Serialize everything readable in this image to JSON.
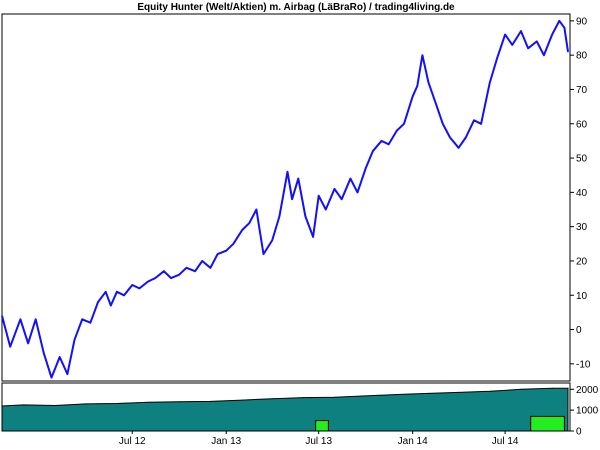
{
  "colors": {
    "background": "#ffffff",
    "frame": "#000000",
    "equity_line": "#1010ff",
    "volume_fill": "#0e8080",
    "volume_outline": "#000000",
    "airbag_fill": "#22ee22",
    "grid_tick": "#000000"
  },
  "chart_data": [
    {
      "type": "line",
      "title": "Equity Hunter (Welt/Aktien) m. Airbag (LäBraRo) / trading4living.de",
      "y_axis_side": "right",
      "ylim": [
        -15,
        92
      ],
      "yticks": [
        -10,
        0,
        10,
        20,
        30,
        40,
        50,
        60,
        70,
        80,
        90
      ],
      "ytick_labels": [
        "-10",
        "0",
        "10",
        "20",
        "30",
        "40",
        "50",
        "60",
        "70",
        "80",
        "90"
      ],
      "xlim": [
        "2011-10-20",
        "2014-11-05"
      ],
      "grid": false,
      "series": [
        {
          "values_x": [
            "2011-10-20",
            "2011-11-05",
            "2011-11-25",
            "2011-12-10",
            "2011-12-25",
            "2012-01-10",
            "2012-01-25",
            "2012-02-10",
            "2012-02-25",
            "2012-03-10",
            "2012-03-25",
            "2012-04-10",
            "2012-04-25",
            "2012-05-10",
            "2012-05-20",
            "2012-06-01",
            "2012-06-15",
            "2012-07-01",
            "2012-07-15",
            "2012-08-01",
            "2012-08-15",
            "2012-09-01",
            "2012-09-15",
            "2012-10-01",
            "2012-10-15",
            "2012-11-01",
            "2012-11-15",
            "2012-12-01",
            "2012-12-15",
            "2013-01-01",
            "2013-01-15",
            "2013-02-01",
            "2013-02-15",
            "2013-03-01",
            "2013-03-15",
            "2013-04-01",
            "2013-04-15",
            "2013-05-01",
            "2013-05-10",
            "2013-05-22",
            "2013-06-05",
            "2013-06-20",
            "2013-07-01",
            "2013-07-15",
            "2013-08-01",
            "2013-08-15",
            "2013-09-01",
            "2013-09-15",
            "2013-10-01",
            "2013-10-15",
            "2013-11-01",
            "2013-11-15",
            "2013-12-01",
            "2013-12-15",
            "2014-01-01",
            "2014-01-10",
            "2014-01-20",
            "2014-02-01",
            "2014-02-15",
            "2014-03-01",
            "2014-03-15",
            "2014-04-01",
            "2014-04-15",
            "2014-05-01",
            "2014-05-15",
            "2014-06-01",
            "2014-06-15",
            "2014-07-01",
            "2014-07-15",
            "2014-08-01",
            "2014-08-15",
            "2014-09-01",
            "2014-09-15",
            "2014-10-01",
            "2014-10-15",
            "2014-10-25",
            "2014-11-01"
          ],
          "values_y": [
            4,
            -5,
            3,
            -4,
            3,
            -7,
            -14,
            -8,
            -13,
            -3,
            3,
            2,
            8,
            11,
            7,
            11,
            10,
            13,
            12,
            14,
            15,
            17,
            15,
            16,
            18,
            17,
            20,
            18,
            22,
            23,
            25,
            29,
            31,
            35,
            22,
            26,
            33,
            46,
            38,
            44,
            33,
            27,
            39,
            35,
            41,
            38,
            44,
            40,
            47,
            52,
            55,
            54,
            58,
            60,
            68,
            71,
            80,
            72,
            66,
            60,
            56,
            53,
            56,
            61,
            60,
            72,
            79,
            86,
            83,
            87,
            82,
            84,
            80,
            86,
            90,
            88,
            81
          ]
        }
      ]
    },
    {
      "type": "area",
      "ylim": [
        0,
        2300
      ],
      "yticks": [
        0,
        1000,
        2000
      ],
      "ytick_labels": [
        "0",
        "1000",
        "2000"
      ],
      "xlim": [
        "2011-10-20",
        "2014-11-05"
      ],
      "x_tick_labels": [
        "Jul 12",
        "Jan 13",
        "Jul 13",
        "Jan 14",
        "Jul 14"
      ],
      "x_tick_dates": [
        "2012-07-01",
        "2013-01-01",
        "2013-07-01",
        "2014-01-01",
        "2014-07-01"
      ],
      "series": [
        {
          "values_x": [
            "2011-10-20",
            "2011-12-01",
            "2012-02-01",
            "2012-04-01",
            "2012-06-01",
            "2012-08-01",
            "2012-10-01",
            "2012-12-01",
            "2013-02-01",
            "2013-04-01",
            "2013-06-01",
            "2013-08-01",
            "2013-10-01",
            "2013-12-01",
            "2014-02-01",
            "2014-04-01",
            "2014-06-01",
            "2014-08-01",
            "2014-10-01",
            "2014-11-01"
          ],
          "values_y": [
            1200,
            1250,
            1220,
            1300,
            1320,
            1380,
            1400,
            1420,
            1480,
            1550,
            1600,
            1620,
            1680,
            1750,
            1800,
            1850,
            1900,
            2000,
            2050,
            2050
          ]
        }
      ],
      "airbag_periods": [
        {
          "start": "2013-06-25",
          "end": "2013-07-20",
          "value": 500
        },
        {
          "start": "2014-08-20",
          "end": "2014-10-25",
          "value": 700
        }
      ]
    }
  ]
}
